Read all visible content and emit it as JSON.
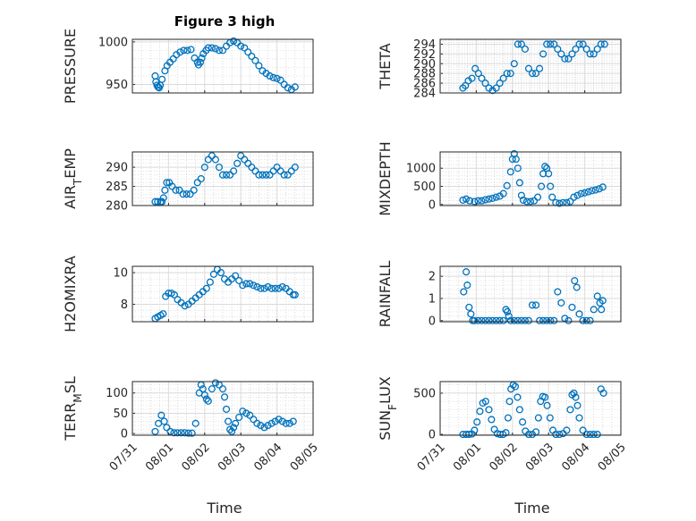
{
  "title": "Figure 3 high",
  "xlabel": "Time",
  "x_ticks": [
    "07/31",
    "08/01",
    "08/02",
    "08/03",
    "08/04",
    "08/05"
  ],
  "marker_color": "#0072BD",
  "chart_data": [
    {
      "type": "scatter",
      "ylabel": "PRESSURE",
      "ylim": [
        940,
        1003
      ],
      "yticks": [
        950,
        1000
      ],
      "xlim": [
        "07/31",
        "08/05"
      ],
      "grid": true,
      "x": [
        0.63,
        0.65,
        0.68,
        0.71,
        0.74,
        0.77,
        0.82,
        0.9,
        0.96,
        1.04,
        1.13,
        1.22,
        1.32,
        1.42,
        1.52,
        1.62,
        1.72,
        1.8,
        1.83,
        1.88,
        1.92,
        1.96,
        2.04,
        2.1,
        2.2,
        2.3,
        2.4,
        2.5,
        2.6,
        2.7,
        2.8,
        2.9,
        3.0,
        3.1,
        3.2,
        3.3,
        3.4,
        3.5,
        3.6,
        3.7,
        3.8,
        3.9,
        4.0,
        4.1,
        4.2,
        4.3,
        4.4,
        4.5
      ],
      "y": [
        960,
        953,
        949,
        947,
        946,
        949,
        956,
        966,
        972,
        976,
        980,
        985,
        988,
        990,
        990,
        991,
        981,
        976,
        973,
        976,
        981,
        986,
        990,
        993,
        993,
        992,
        990,
        990,
        995,
        999,
        1001,
        999,
        995,
        993,
        988,
        983,
        978,
        972,
        966,
        963,
        960,
        958,
        957,
        955,
        950,
        946,
        944,
        947
      ]
    },
    {
      "type": "scatter",
      "ylabel": "THETA",
      "ylim": [
        284,
        295
      ],
      "yticks": [
        284,
        286,
        288,
        290,
        292,
        294
      ],
      "xlim": [
        "07/31",
        "08/05"
      ],
      "grid": true,
      "x": [
        0.63,
        0.7,
        0.78,
        0.88,
        0.97,
        1.06,
        1.15,
        1.25,
        1.35,
        1.45,
        1.55,
        1.65,
        1.75,
        1.85,
        1.95,
        2.05,
        2.15,
        2.25,
        2.35,
        2.45,
        2.55,
        2.65,
        2.75,
        2.85,
        2.95,
        3.05,
        3.15,
        3.25,
        3.35,
        3.45,
        3.55,
        3.65,
        3.75,
        3.85,
        3.95,
        4.05,
        4.15,
        4.25,
        4.35,
        4.45,
        4.55
      ],
      "y": [
        285,
        285.5,
        286.5,
        287,
        289,
        288,
        287,
        286,
        285,
        284.5,
        285,
        286,
        287,
        288,
        288,
        290,
        294,
        294,
        293,
        289,
        288,
        288,
        289,
        292,
        294,
        294,
        294,
        293,
        292,
        291,
        291,
        292,
        293,
        294,
        294,
        293,
        292,
        292,
        293,
        294,
        294
      ]
    },
    {
      "type": "scatter",
      "ylabel": "AIR_TEMP",
      "ylim": [
        280,
        294
      ],
      "yticks": [
        280,
        285,
        290
      ],
      "xlim": [
        "07/31",
        "08/05"
      ],
      "grid": true,
      "x": [
        0.63,
        0.7,
        0.78,
        0.82,
        0.86,
        0.9,
        0.95,
        1.02,
        1.1,
        1.2,
        1.3,
        1.4,
        1.5,
        1.6,
        1.7,
        1.8,
        1.9,
        2.0,
        2.1,
        2.2,
        2.3,
        2.4,
        2.5,
        2.6,
        2.7,
        2.8,
        2.9,
        3.0,
        3.1,
        3.2,
        3.3,
        3.4,
        3.5,
        3.6,
        3.7,
        3.8,
        3.9,
        4.0,
        4.1,
        4.2,
        4.3,
        4.4,
        4.5
      ],
      "y": [
        281,
        281,
        281,
        281,
        282,
        284,
        286,
        286,
        285,
        284,
        284,
        283,
        283,
        283,
        284,
        286,
        287,
        290,
        292,
        293,
        292,
        290,
        288,
        288,
        288,
        289,
        291,
        293,
        292,
        291,
        290,
        289,
        288,
        288,
        288,
        288,
        289,
        290,
        289,
        288,
        288,
        289,
        290
      ]
    },
    {
      "type": "scatter",
      "ylabel": "MIXDEPTH",
      "ylim": [
        -30,
        1450
      ],
      "yticks": [
        0,
        500,
        1000
      ],
      "xlim": [
        "07/31",
        "08/05"
      ],
      "grid": true,
      "x": [
        0.63,
        0.72,
        0.82,
        0.95,
        1.05,
        1.15,
        1.25,
        1.35,
        1.45,
        1.55,
        1.65,
        1.75,
        1.85,
        1.95,
        2.0,
        2.05,
        2.1,
        2.15,
        2.2,
        2.25,
        2.3,
        2.4,
        2.5,
        2.6,
        2.7,
        2.8,
        2.85,
        2.9,
        2.95,
        3.0,
        3.05,
        3.1,
        3.2,
        3.3,
        3.4,
        3.5,
        3.6,
        3.7,
        3.8,
        3.9,
        4.0,
        4.1,
        4.2,
        4.3,
        4.4,
        4.5
      ],
      "y": [
        120,
        150,
        100,
        80,
        100,
        100,
        130,
        150,
        170,
        200,
        230,
        300,
        520,
        900,
        1250,
        1400,
        1250,
        1000,
        600,
        250,
        120,
        80,
        80,
        100,
        200,
        500,
        850,
        1050,
        1000,
        850,
        500,
        200,
        50,
        30,
        50,
        50,
        80,
        200,
        250,
        300,
        320,
        350,
        380,
        400,
        430,
        480
      ]
    },
    {
      "type": "scatter",
      "ylabel": "H2OMIXRA",
      "ylim": [
        6.9,
        10.4
      ],
      "yticks": [
        8,
        10
      ],
      "xlim": [
        "07/31",
        "08/05"
      ],
      "grid": true,
      "x": [
        0.63,
        0.7,
        0.78,
        0.85,
        0.92,
        1.0,
        1.08,
        1.16,
        1.25,
        1.35,
        1.45,
        1.55,
        1.65,
        1.75,
        1.85,
        1.95,
        2.05,
        2.15,
        2.25,
        2.35,
        2.45,
        2.55,
        2.65,
        2.75,
        2.85,
        2.95,
        3.05,
        3.15,
        3.25,
        3.35,
        3.45,
        3.55,
        3.65,
        3.75,
        3.85,
        3.95,
        4.05,
        4.15,
        4.25,
        4.35,
        4.45,
        4.5
      ],
      "y": [
        7.1,
        7.2,
        7.3,
        7.4,
        8.5,
        8.7,
        8.7,
        8.6,
        8.3,
        8.1,
        7.9,
        8.0,
        8.2,
        8.4,
        8.6,
        8.8,
        9.0,
        9.4,
        9.9,
        10.2,
        10.0,
        9.6,
        9.4,
        9.6,
        9.8,
        9.5,
        9.2,
        9.3,
        9.3,
        9.2,
        9.1,
        9.0,
        9.0,
        9.1,
        9.0,
        9.0,
        9.0,
        9.1,
        9.0,
        8.8,
        8.6,
        8.6
      ]
    },
    {
      "type": "scatter",
      "ylabel": "RAINFALL",
      "ylim": [
        -0.05,
        2.45
      ],
      "yticks": [
        0,
        1,
        2
      ],
      "xlim": [
        "07/31",
        "08/05"
      ],
      "grid": true,
      "x": [
        0.65,
        0.72,
        0.75,
        0.8,
        0.85,
        0.9,
        0.95,
        1.05,
        1.15,
        1.25,
        1.35,
        1.45,
        1.55,
        1.65,
        1.75,
        1.82,
        1.86,
        1.9,
        1.95,
        2.05,
        2.15,
        2.25,
        2.35,
        2.45,
        2.55,
        2.65,
        2.75,
        2.85,
        2.95,
        3.05,
        3.15,
        3.25,
        3.35,
        3.45,
        3.55,
        3.65,
        3.72,
        3.78,
        3.85,
        3.95,
        4.05,
        4.15,
        4.25,
        4.35,
        4.42,
        4.46,
        4.5
      ],
      "y": [
        1.3,
        2.2,
        1.6,
        0.6,
        0.3,
        0,
        0,
        0,
        0,
        0,
        0,
        0,
        0,
        0,
        0,
        0.5,
        0.4,
        0.2,
        0,
        0,
        0,
        0,
        0,
        0,
        0.7,
        0.7,
        0,
        0,
        0,
        0,
        0,
        1.3,
        0.8,
        0.1,
        0,
        0.6,
        1.8,
        1.5,
        0.3,
        0,
        0,
        0,
        0.5,
        1.1,
        0.8,
        0.5,
        0.9
      ]
    },
    {
      "type": "scatter",
      "ylabel": "TERR_MSL",
      "ylim": [
        -4,
        128
      ],
      "yticks": [
        0,
        50,
        100
      ],
      "xlim": [
        "07/31",
        "08/05"
      ],
      "grid": true,
      "x": [
        0.63,
        0.72,
        0.8,
        0.88,
        0.95,
        1.05,
        1.15,
        1.25,
        1.35,
        1.45,
        1.55,
        1.65,
        1.75,
        1.85,
        1.9,
        1.95,
        2.0,
        2.05,
        2.1,
        2.2,
        2.3,
        2.4,
        2.5,
        2.55,
        2.6,
        2.65,
        2.7,
        2.75,
        2.8,
        2.85,
        2.95,
        3.05,
        3.15,
        3.25,
        3.35,
        3.45,
        3.55,
        3.65,
        3.75,
        3.85,
        3.95,
        4.05,
        4.15,
        4.25,
        4.35,
        4.45
      ],
      "y": [
        5,
        25,
        45,
        30,
        15,
        5,
        2,
        2,
        2,
        2,
        1,
        1,
        25,
        100,
        120,
        110,
        95,
        85,
        80,
        110,
        125,
        120,
        110,
        90,
        60,
        30,
        10,
        5,
        15,
        25,
        40,
        55,
        50,
        45,
        35,
        25,
        20,
        15,
        20,
        25,
        30,
        35,
        30,
        25,
        25,
        30
      ]
    },
    {
      "type": "scatter",
      "ylabel": "SUN_FLUX",
      "ylim": [
        -10,
        640
      ],
      "yticks": [
        0,
        500
      ],
      "xlim": [
        "07/31",
        "08/05"
      ],
      "grid": true,
      "x": [
        0.63,
        0.72,
        0.8,
        0.88,
        0.95,
        1.02,
        1.1,
        1.18,
        1.26,
        1.35,
        1.42,
        1.5,
        1.58,
        1.66,
        1.74,
        1.82,
        1.88,
        1.92,
        1.96,
        2.02,
        2.08,
        2.14,
        2.2,
        2.28,
        2.36,
        2.45,
        2.55,
        2.65,
        2.72,
        2.78,
        2.84,
        2.9,
        2.96,
        3.04,
        3.12,
        3.2,
        3.3,
        3.4,
        3.5,
        3.6,
        3.65,
        3.7,
        3.75,
        3.8,
        3.85,
        3.95,
        4.05,
        4.15,
        4.25,
        4.35,
        4.45,
        4.52
      ],
      "y": [
        0,
        0,
        0,
        5,
        50,
        150,
        280,
        380,
        400,
        300,
        180,
        60,
        10,
        0,
        0,
        20,
        200,
        400,
        550,
        600,
        580,
        450,
        300,
        150,
        40,
        0,
        0,
        30,
        200,
        400,
        460,
        450,
        350,
        200,
        50,
        0,
        0,
        10,
        50,
        300,
        480,
        500,
        450,
        350,
        200,
        50,
        0,
        0,
        0,
        0,
        550,
        500
      ]
    }
  ]
}
